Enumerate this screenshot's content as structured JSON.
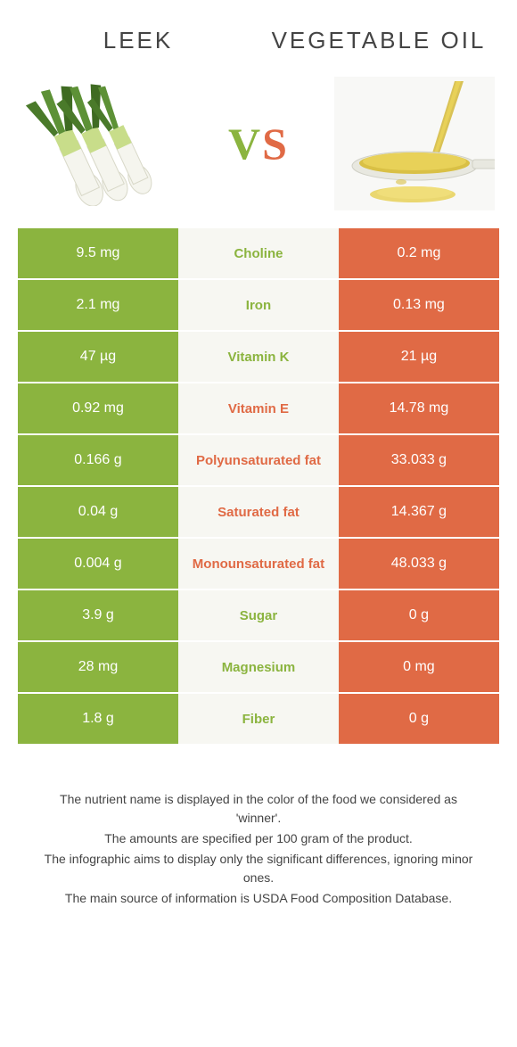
{
  "colors": {
    "left": "#8bb43f",
    "right": "#e06a45",
    "middle_bg": "#f7f7f2"
  },
  "header": {
    "left_title": "Leek",
    "right_title": "Vegetable oil",
    "vs_v": "V",
    "vs_s": "S"
  },
  "rows": [
    {
      "left": "9.5 mg",
      "label": "Choline",
      "right": "0.2 mg",
      "winner": "left"
    },
    {
      "left": "2.1 mg",
      "label": "Iron",
      "right": "0.13 mg",
      "winner": "left"
    },
    {
      "left": "47 µg",
      "label": "Vitamin K",
      "right": "21 µg",
      "winner": "left"
    },
    {
      "left": "0.92 mg",
      "label": "Vitamin E",
      "right": "14.78 mg",
      "winner": "right"
    },
    {
      "left": "0.166 g",
      "label": "Polyunsaturated fat",
      "right": "33.033 g",
      "winner": "right"
    },
    {
      "left": "0.04 g",
      "label": "Saturated fat",
      "right": "14.367 g",
      "winner": "right"
    },
    {
      "left": "0.004 g",
      "label": "Monounsaturated fat",
      "right": "48.033 g",
      "winner": "right"
    },
    {
      "left": "3.9 g",
      "label": "Sugar",
      "right": "0 g",
      "winner": "left"
    },
    {
      "left": "28 mg",
      "label": "Magnesium",
      "right": "0 mg",
      "winner": "left"
    },
    {
      "left": "1.8 g",
      "label": "Fiber",
      "right": "0 g",
      "winner": "left"
    }
  ],
  "footer": {
    "line1": "The nutrient name is displayed in the color of the food we considered as 'winner'.",
    "line2": "The amounts are specified per 100 gram of the product.",
    "line3": "The infographic aims to display only the significant differences, ignoring minor ones.",
    "line4": "The main source of information is USDA Food Composition Database."
  }
}
